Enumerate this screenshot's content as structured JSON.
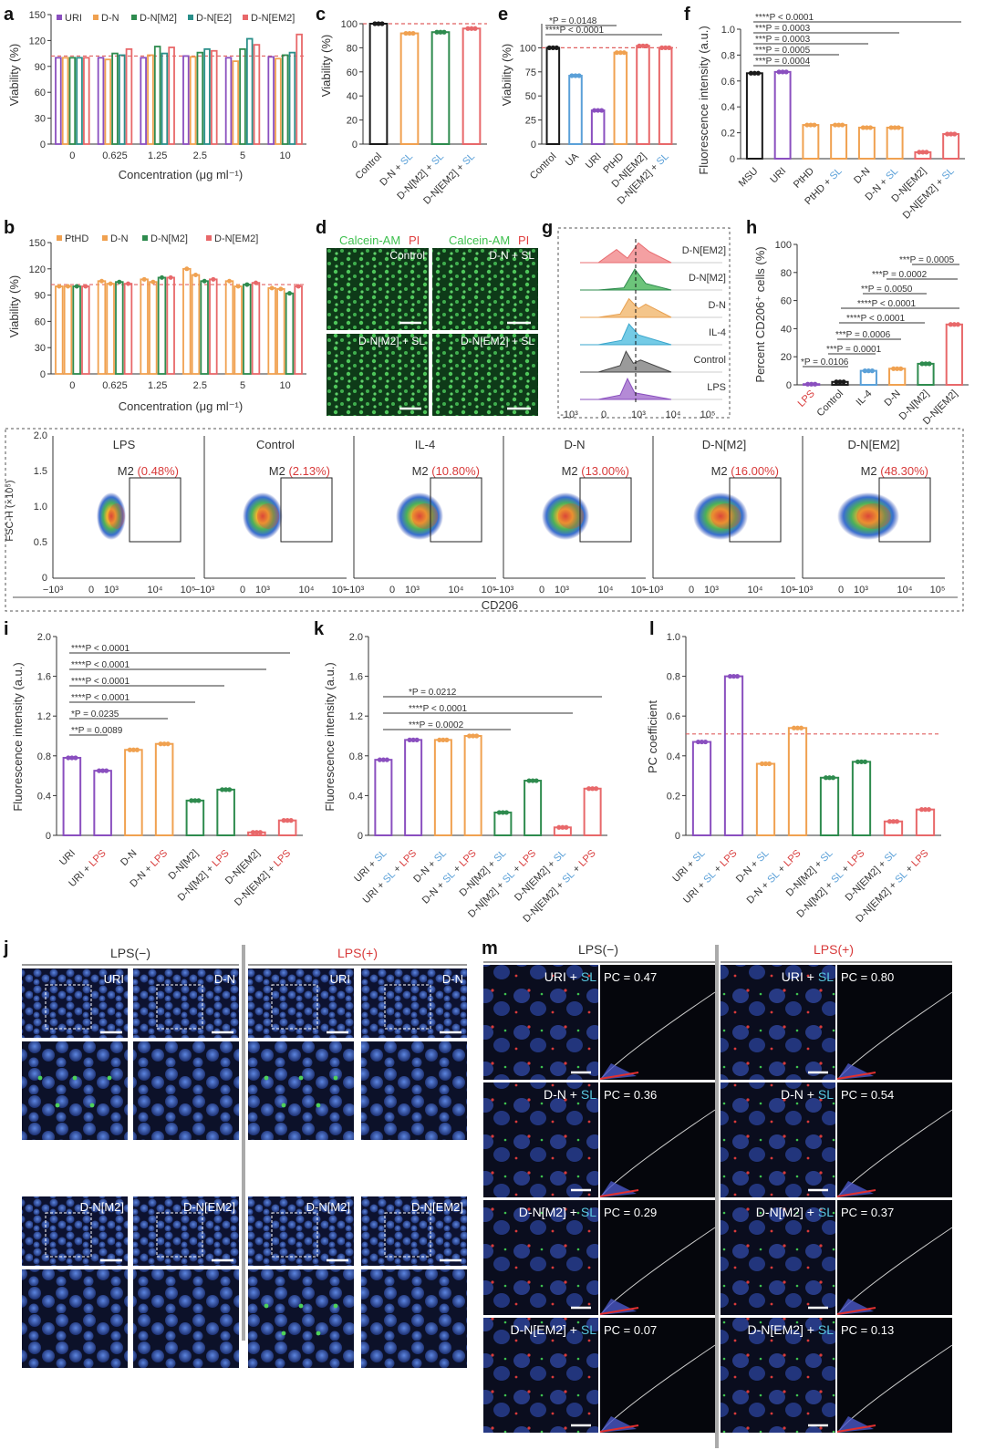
{
  "panels": {
    "a": {
      "letter": "a",
      "legend": [
        "URI",
        "D-N",
        "D-N[M2]",
        "D-N[E2]",
        "D-N[EM2]"
      ],
      "xlabel": "Concentration (μg ml⁻¹)",
      "ylabel": "Viability (%)",
      "xticks": [
        "0",
        "0.625",
        "1.25",
        "2.5",
        "5",
        "10"
      ],
      "yticks": [
        "0",
        "30",
        "60",
        "90",
        "120",
        "150"
      ]
    },
    "b": {
      "letter": "b",
      "legend": [
        "PtHD",
        "D-N",
        "D-N[M2]",
        "D-N[EM2]"
      ],
      "xlabel": "Concentration (μg ml⁻¹)",
      "ylabel": "Viability (%)",
      "xticks": [
        "0",
        "0.625",
        "1.25",
        "2.5",
        "5",
        "10"
      ],
      "yticks": [
        "0",
        "30",
        "60",
        "90",
        "120",
        "150"
      ]
    },
    "c": {
      "letter": "c",
      "ylabel": "Viability (%)",
      "yticks": [
        "0",
        "20",
        "40",
        "60",
        "80",
        "100"
      ],
      "categories": [
        "Control",
        "D-N + SL",
        "D-N[M2] + SL",
        "D-N[EM2] + SL"
      ]
    },
    "d": {
      "letter": "d",
      "legend_left": "Calcein-AM",
      "legend_right": "PI",
      "labels": [
        "Control",
        "D-N + SL",
        "D-N[M2] + SL",
        "D-N[EM2] + SL"
      ]
    },
    "e": {
      "letter": "e",
      "ylabel": "Viability (%)",
      "yticks": [
        "0",
        "25",
        "50",
        "75",
        "100"
      ],
      "categories": [
        "Control",
        "UA",
        "URI",
        "PtHD",
        "D-N[EM2]",
        "D-N[EM2] + SL"
      ],
      "sig": [
        "*P = 0.0148",
        "****P < 0.0001"
      ]
    },
    "f": {
      "letter": "f",
      "ylabel": "Fluorescence intensity (a.u.)",
      "yticks": [
        "0",
        "0.2",
        "0.4",
        "0.6",
        "0.8",
        "1.0"
      ],
      "sig": [
        "****P < 0.0001",
        "***P = 0.0003",
        "***P = 0.0003",
        "***P = 0.0005",
        "***P = 0.0004"
      ]
    },
    "g": {
      "letter": "g",
      "rows": [
        "D-N[EM2]",
        "D-N[M2]",
        "D-N",
        "IL-4",
        "Control",
        "LPS"
      ],
      "xticks": [
        "-10³",
        "0",
        "10³",
        "10⁴",
        "10⁵"
      ]
    },
    "h": {
      "letter": "h",
      "ylabel": "Percent CD206⁺ cells (%)",
      "yticks": [
        "0",
        "20",
        "40",
        "60",
        "80",
        "100"
      ],
      "categories": [
        "LPS",
        "Control",
        "IL-4",
        "D-N",
        "D-N[M2]",
        "D-N[EM2]"
      ],
      "sig": [
        "***P = 0.0005",
        "***P = 0.0002",
        "**P = 0.0050",
        "****P < 0.0001",
        "****P < 0.0001",
        "***P = 0.0006",
        "***P = 0.0001",
        "*P = 0.0106"
      ]
    },
    "flow": {
      "titles": [
        "LPS",
        "Control",
        "IL-4",
        "D-N",
        "D-N[M2]",
        "D-N[EM2]"
      ],
      "gate_label": "M2",
      "gates": [
        "(0.48%)",
        "(2.13%)",
        "(10.80%)",
        "(13.00%)",
        "(16.00%)",
        "(48.30%)"
      ],
      "ylabel": "FSC-H (×10⁵)",
      "xlabel": "CD206",
      "yticks": [
        "0",
        "0.5",
        "1.0",
        "1.5",
        "2.0"
      ],
      "xticks": [
        "−10³",
        "0",
        "10³",
        "10⁴",
        "10⁵"
      ]
    },
    "i": {
      "letter": "i",
      "ylabel": "Fluorescence intensity (a.u.)",
      "yticks": [
        "0",
        "0.4",
        "0.8",
        "1.2",
        "1.6",
        "2.0"
      ],
      "categories": [
        "URI",
        "URI + LPS",
        "D-N",
        "D-N + LPS",
        "D-N[M2]",
        "D-N[M2] + LPS",
        "D-N[EM2]",
        "D-N[EM2] + LPS"
      ],
      "sig": [
        "****P < 0.0001",
        "****P < 0.0001",
        "****P < 0.0001",
        "****P < 0.0001",
        "*P = 0.0235",
        "**P = 0.0089"
      ]
    },
    "k": {
      "letter": "k",
      "ylabel": "Fluorescence intensity (a.u.)",
      "yticks": [
        "0",
        "0.4",
        "0.8",
        "1.2",
        "1.6",
        "2.0"
      ],
      "categories": [
        "URI + SL",
        "URI + SL + LPS",
        "D-N + SL",
        "D-N + SL + LPS",
        "D-N[M2] + SL",
        "D-N[M2] + SL + LPS",
        "D-N[EM2] + SL",
        "D-N[EM2] + SL + LPS"
      ],
      "sig": [
        "*P = 0.0212",
        "****P < 0.0001",
        "***P = 0.0002"
      ]
    },
    "l": {
      "letter": "l",
      "ylabel": "PC coefficient",
      "yticks": [
        "0",
        "0.2",
        "0.4",
        "0.6",
        "0.8",
        "1.0"
      ],
      "categories": [
        "URI + SL",
        "URI + SL + LPS",
        "D-N + SL",
        "D-N + SL + LPS",
        "D-N[M2] + SL",
        "D-N[M2] + SL + LPS",
        "D-N[EM2] + SL",
        "D-N[EM2] + SL + LPS"
      ]
    },
    "j": {
      "letter": "j",
      "header_minus": "LPS(−)",
      "header_plus": "LPS(+)",
      "labels": [
        "URI",
        "D-N",
        "URI",
        "D-N",
        "D-N[M2]",
        "D-N[EM2]",
        "D-N[M2]",
        "D-N[EM2]"
      ]
    },
    "m": {
      "letter": "m",
      "header_minus": "LPS(−)",
      "header_plus": "LPS(+)",
      "rows": [
        {
          "name": "URI + SL",
          "pc_minus": "PC = 0.47",
          "pc_plus": "PC = 0.80"
        },
        {
          "name": "D-N + SL",
          "pc_minus": "PC = 0.36",
          "pc_plus": "PC = 0.54"
        },
        {
          "name": "D-N[M2] + SL",
          "pc_minus": "PC = 0.29",
          "pc_plus": "PC = 0.37"
        },
        {
          "name": "D-N[EM2] + SL",
          "pc_minus": "PC = 0.07",
          "pc_plus": "PC = 0.13"
        }
      ]
    }
  },
  "colors": {
    "black": "#1a1a1a",
    "purple": "#8a4fbf",
    "orange": "#f0a150",
    "green": "#2e8b4e",
    "red": "#e8686a",
    "blue": "#5aa0d8",
    "teal": "#2a8f8a",
    "cyan": "#5ac8e0"
  },
  "chart_data": [
    {
      "id": "a",
      "type": "bar",
      "title": "",
      "xlabel": "Concentration (μg ml⁻¹)",
      "ylabel": "Viability (%)",
      "ylim": [
        0,
        150
      ],
      "categories": [
        "0",
        "0.625",
        "1.25",
        "2.5",
        "5",
        "10"
      ],
      "ref_line": 102,
      "series": [
        {
          "name": "URI",
          "values": [
            100,
            100,
            100,
            102,
            100,
            101
          ]
        },
        {
          "name": "D-N",
          "values": [
            100,
            98,
            103,
            101,
            96,
            99
          ]
        },
        {
          "name": "D-N[M2]",
          "values": [
            100,
            105,
            113,
            106,
            110,
            103
          ]
        },
        {
          "name": "D-N[E2]",
          "values": [
            100,
            103,
            105,
            110,
            122,
            106
          ]
        },
        {
          "name": "D-N[EM2]",
          "values": [
            100,
            110,
            112,
            108,
            115,
            127
          ]
        }
      ]
    },
    {
      "id": "b",
      "type": "bar",
      "title": "",
      "xlabel": "Concentration (μg ml⁻¹)",
      "ylabel": "Viability (%)",
      "ylim": [
        0,
        150
      ],
      "categories": [
        "0",
        "0.625",
        "1.25",
        "2.5",
        "5",
        "10"
      ],
      "ref_line": 102,
      "series": [
        {
          "name": "PtHD",
          "values": [
            100,
            106,
            108,
            120,
            106,
            98
          ]
        },
        {
          "name": "D-N",
          "values": [
            100,
            103,
            105,
            113,
            100,
            97
          ]
        },
        {
          "name": "D-N[M2]",
          "values": [
            100,
            105,
            110,
            106,
            102,
            92
          ]
        },
        {
          "name": "D-N[EM2]",
          "values": [
            100,
            103,
            110,
            108,
            104,
            100
          ]
        }
      ]
    },
    {
      "id": "c",
      "type": "bar",
      "ylabel": "Viability (%)",
      "ylim": [
        0,
        100
      ],
      "ref_line": 100,
      "categories": [
        "Control",
        "D-N + SL",
        "D-N[M2] + SL",
        "D-N[EM2] + SL"
      ],
      "values": [
        100,
        92,
        93,
        96
      ]
    },
    {
      "id": "e",
      "type": "bar",
      "ylabel": "Viability (%)",
      "ylim": [
        0,
        125
      ],
      "ref_line": 100,
      "categories": [
        "Control",
        "UA",
        "URI",
        "PtHD",
        "D-N[EM2]",
        "D-N[EM2] + SL"
      ],
      "values": [
        100,
        71,
        35,
        95,
        102,
        100
      ]
    },
    {
      "id": "f",
      "type": "bar",
      "ylabel": "Fluorescence intensity (a.u.)",
      "ylim": [
        0,
        1.0
      ],
      "categories": [
        "MSU",
        "URI",
        "PtHD",
        "PtHD + SL",
        "D-N",
        "D-N + SL",
        "D-N[EM2]",
        "D-N[EM2] + SL"
      ],
      "values": [
        0.66,
        0.67,
        0.26,
        0.26,
        0.24,
        0.24,
        0.05,
        0.19
      ]
    },
    {
      "id": "h",
      "type": "bar",
      "ylabel": "Percent CD206⁺ cells (%)",
      "ylim": [
        0,
        100
      ],
      "categories": [
        "LPS",
        "Control",
        "IL-4",
        "D-N",
        "D-N[M2]",
        "D-N[EM2]"
      ],
      "values": [
        0.5,
        2.1,
        10.0,
        11.5,
        15.0,
        43.0
      ]
    },
    {
      "id": "i",
      "type": "bar",
      "ylabel": "Fluorescence intensity (a.u.)",
      "ylim": [
        0,
        2.0
      ],
      "categories": [
        "URI",
        "URI + LPS",
        "D-N",
        "D-N + LPS",
        "D-N[M2]",
        "D-N[M2] + LPS",
        "D-N[EM2]",
        "D-N[EM2] + LPS"
      ],
      "values": [
        0.78,
        0.65,
        0.86,
        0.92,
        0.35,
        0.46,
        0.03,
        0.15
      ]
    },
    {
      "id": "k",
      "type": "bar",
      "ylabel": "Fluorescence intensity (a.u.)",
      "ylim": [
        0,
        2.0
      ],
      "categories": [
        "URI + SL",
        "URI + SL + LPS",
        "D-N + SL",
        "D-N + SL + LPS",
        "D-N[M2] + SL",
        "D-N[M2] + SL + LPS",
        "D-N[EM2] + SL",
        "D-N[EM2] + SL + LPS"
      ],
      "values": [
        0.76,
        0.96,
        0.96,
        1.0,
        0.23,
        0.55,
        0.08,
        0.47
      ]
    },
    {
      "id": "l",
      "type": "bar",
      "ylabel": "PC coefficient",
      "ylim": [
        0,
        1.0
      ],
      "ref_line": 0.51,
      "categories": [
        "URI + SL",
        "URI + SL + LPS",
        "D-N + SL",
        "D-N + SL + LPS",
        "D-N[M2] + SL",
        "D-N[M2] + SL + LPS",
        "D-N[EM2] + SL",
        "D-N[EM2] + SL + LPS"
      ],
      "values": [
        0.47,
        0.8,
        0.36,
        0.54,
        0.29,
        0.37,
        0.07,
        0.13
      ]
    }
  ]
}
